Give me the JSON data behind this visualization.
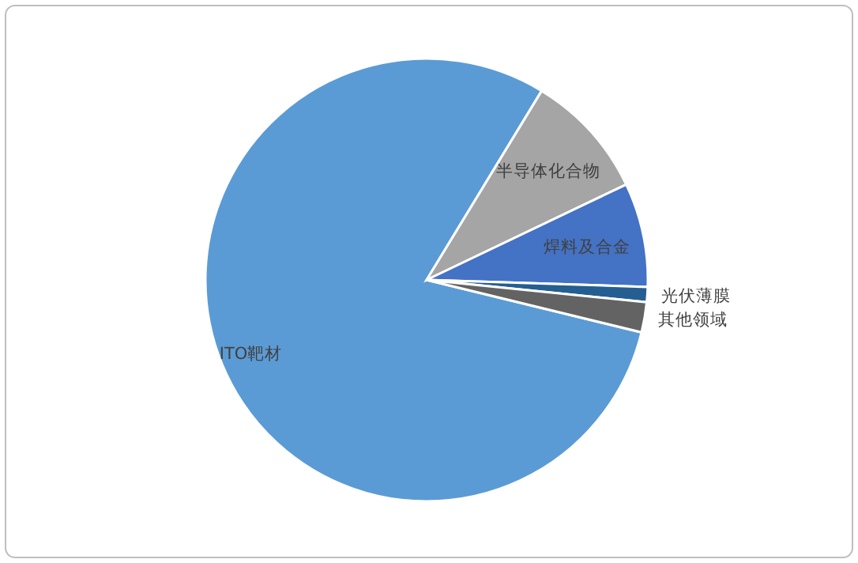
{
  "chart_data": {
    "type": "pie",
    "categories": [
      "ITO靶材",
      "半导体化合物",
      "焊料及合金",
      "光伏薄膜",
      "其他领域"
    ],
    "values": [
      79.9,
      9.2,
      7.6,
      1.1,
      2.2
    ],
    "colors": [
      "#5b9bd5",
      "#a5a5a5",
      "#4472c4",
      "#255e91",
      "#636363"
    ]
  }
}
